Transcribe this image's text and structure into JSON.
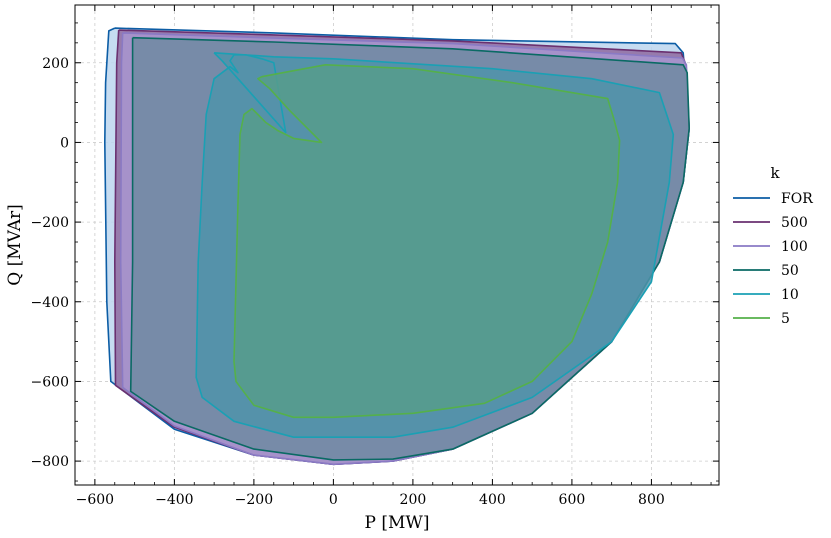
{
  "chart_data": {
    "type": "area",
    "xlabel": "P [MW]",
    "ylabel": "Q [MVAr]",
    "xlim": [
      -650,
      970
    ],
    "ylim": [
      -860,
      345
    ],
    "x_ticks": [
      -600,
      -400,
      -200,
      0,
      200,
      400,
      600,
      800
    ],
    "x_tick_labels": [
      "−600",
      "−400",
      "−200",
      "0",
      "200",
      "400",
      "600",
      "800"
    ],
    "y_ticks": [
      -800,
      -600,
      -400,
      -200,
      0,
      200
    ],
    "y_tick_labels": [
      "−800",
      "−600",
      "−400",
      "−200",
      "0",
      "200"
    ],
    "grid": true,
    "legend_title": "k",
    "legend_position": "outside-right",
    "series": [
      {
        "name": "FOR",
        "color": "#0C5DA5",
        "fill": "#bcd6ee",
        "x": [
          -550,
          -150,
          300,
          860,
          880,
          895,
          880,
          820,
          700,
          500,
          300,
          150,
          0,
          -200,
          -400,
          -560,
          -570,
          -575,
          -573,
          -565,
          -550
        ],
        "y": [
          287,
          275,
          258,
          248,
          225,
          35,
          -100,
          -300,
          -500,
          -680,
          -770,
          -800,
          -808,
          -785,
          -720,
          -600,
          -400,
          0,
          150,
          280,
          287
        ]
      },
      {
        "name": "500",
        "color": "#6a3070",
        "fill": "#8e6aa0",
        "x": [
          -540,
          -150,
          300,
          875,
          885,
          895,
          880,
          820,
          700,
          500,
          300,
          150,
          0,
          -200,
          -400,
          -548,
          -550,
          -545,
          -540
        ],
        "y": [
          282,
          270,
          255,
          225,
          200,
          35,
          -100,
          -300,
          -500,
          -680,
          -770,
          -800,
          -808,
          -785,
          -715,
          -610,
          -300,
          200,
          282
        ]
      },
      {
        "name": "100",
        "color": "#8a7ac4",
        "fill": "#a896cf",
        "x": [
          -530,
          -150,
          300,
          878,
          888,
          895,
          880,
          820,
          700,
          500,
          300,
          150,
          0,
          -200,
          -400,
          -530,
          -535,
          -533,
          -530
        ],
        "y": [
          275,
          262,
          248,
          212,
          195,
          35,
          -100,
          -300,
          -500,
          -680,
          -770,
          -800,
          -808,
          -785,
          -712,
          -615,
          -300,
          200,
          275
        ]
      },
      {
        "name": "50",
        "color": "#0a6a64",
        "fill": "#6e8aa2",
        "x": [
          -505,
          -150,
          300,
          880,
          890,
          895,
          880,
          820,
          700,
          500,
          300,
          150,
          0,
          -200,
          -400,
          -510,
          -505,
          -505
        ],
        "y": [
          263,
          252,
          235,
          195,
          175,
          35,
          -100,
          -300,
          -500,
          -680,
          -770,
          -795,
          -797,
          -770,
          -700,
          -625,
          -300,
          263
        ]
      },
      {
        "name": "10",
        "color": "#1aa0b4",
        "fill": "#4f93aa",
        "x": [
          -300,
          -150,
          0,
          400,
          650,
          820,
          855,
          845,
          800,
          700,
          500,
          300,
          150,
          -100,
          -250,
          -330,
          -345,
          -340,
          -330,
          -320,
          -300,
          -260,
          -240,
          -260,
          -250,
          -220,
          -180,
          -150,
          -120,
          -280,
          -300
        ],
        "y": [
          225,
          215,
          210,
          185,
          160,
          125,
          20,
          -100,
          -350,
          -500,
          -640,
          -715,
          -740,
          -740,
          -700,
          -640,
          -590,
          -300,
          -100,
          70,
          160,
          190,
          175,
          205,
          220,
          220,
          210,
          200,
          25,
          205,
          225
        ]
      },
      {
        "name": "5",
        "color": "#55b04a",
        "fill": "#579c8c",
        "x": [
          -180,
          -100,
          -20,
          200,
          450,
          690,
          705,
          720,
          715,
          690,
          650,
          600,
          500,
          380,
          200,
          0,
          -100,
          -200,
          -245,
          -250,
          -245,
          -240,
          -235,
          -225,
          -205,
          -190,
          -170,
          -140,
          -100,
          -30,
          -110,
          -160,
          -190,
          -180
        ],
        "y": [
          165,
          180,
          195,
          185,
          150,
          110,
          60,
          5,
          -100,
          -250,
          -380,
          -500,
          -600,
          -655,
          -680,
          -690,
          -690,
          -660,
          -600,
          -550,
          -350,
          -150,
          20,
          70,
          85,
          70,
          50,
          30,
          10,
          0,
          80,
          135,
          160,
          165
        ]
      }
    ]
  }
}
